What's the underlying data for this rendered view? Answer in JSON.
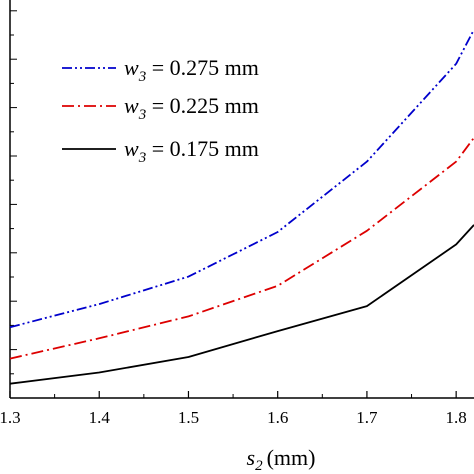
{
  "chart_data": {
    "type": "line",
    "title": "",
    "xlabel": {
      "symbol": "s",
      "subscript": "2",
      "unit": "(mm)"
    },
    "ylabel": "",
    "xlim": [
      1.3,
      1.82
    ],
    "ylim": [
      0,
      1
    ],
    "x_ticks": [
      "1.3",
      "1.4",
      "1.5",
      "1.6",
      "1.7",
      "1.8"
    ],
    "x": [
      1.3,
      1.4,
      1.5,
      1.6,
      1.7,
      1.8,
      1.82
    ],
    "legend_position": "top-left",
    "series": [
      {
        "name": {
          "symbol": "w",
          "subscript": "3",
          "rest": " = 0.275 mm"
        },
        "color": "#0000cc",
        "dash": "dash-dot-dot",
        "values": [
          0.178,
          0.236,
          0.305,
          0.417,
          0.594,
          0.84,
          0.926
        ]
      },
      {
        "name": {
          "symbol": "w",
          "subscript": "3",
          "rest": " = 0.225 mm"
        },
        "color": "#dd0000",
        "dash": "dash-dot",
        "values": [
          0.099,
          0.15,
          0.205,
          0.282,
          0.42,
          0.594,
          0.654
        ]
      },
      {
        "name": {
          "symbol": "w",
          "subscript": "3",
          "rest": " = 0.175 mm"
        },
        "color": "#000000",
        "dash": "solid",
        "values": [
          0.036,
          0.064,
          0.103,
          0.168,
          0.231,
          0.386,
          0.435
        ]
      }
    ]
  }
}
